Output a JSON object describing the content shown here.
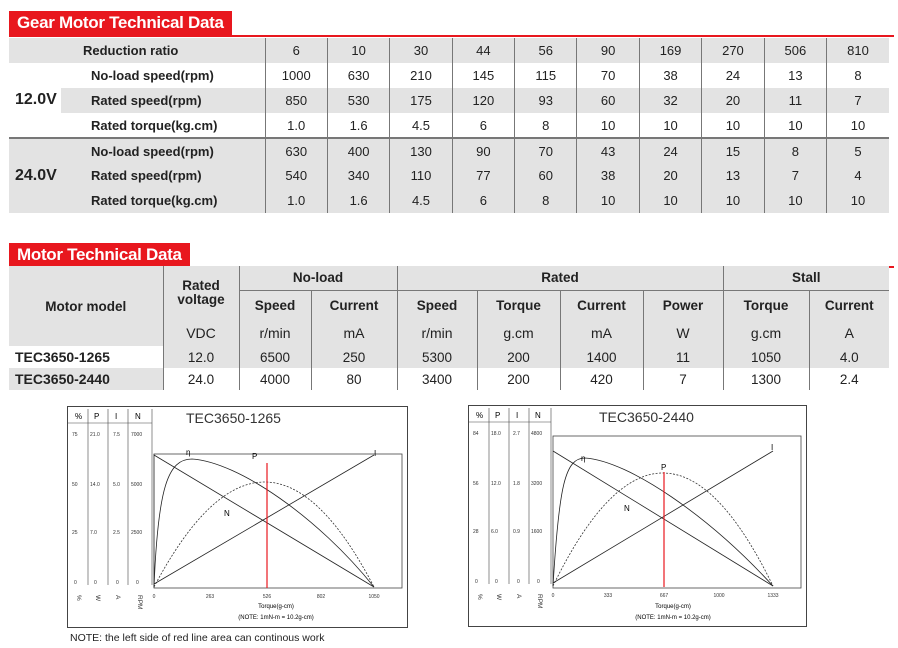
{
  "gear": {
    "title": "Gear Motor Technical Data",
    "ratio_label": "Reduction ratio",
    "ratios": [
      "6",
      "10",
      "30",
      "44",
      "56",
      "90",
      "169",
      "270",
      "506",
      "810"
    ],
    "groups": [
      {
        "voltage": "12.0V",
        "rows": [
          {
            "label": "No-load speed(rpm)",
            "values": [
              "1000",
              "630",
              "210",
              "145",
              "115",
              "70",
              "38",
              "24",
              "13",
              "8"
            ]
          },
          {
            "label": "Rated speed(rpm)",
            "values": [
              "850",
              "530",
              "175",
              "120",
              "93",
              "60",
              "32",
              "20",
              "11",
              "7"
            ]
          },
          {
            "label": "Rated torque(kg.cm)",
            "values": [
              "1.0",
              "1.6",
              "4.5",
              "6",
              "8",
              "10",
              "10",
              "10",
              "10",
              "10"
            ]
          }
        ]
      },
      {
        "voltage": "24.0V",
        "rows": [
          {
            "label": "No-load speed(rpm)",
            "values": [
              "630",
              "400",
              "130",
              "90",
              "70",
              "43",
              "24",
              "15",
              "8",
              "5"
            ]
          },
          {
            "label": "Rated speed(rpm)",
            "values": [
              "540",
              "340",
              "110",
              "77",
              "60",
              "38",
              "20",
              "13",
              "7",
              "4"
            ]
          },
          {
            "label": "Rated torque(kg.cm)",
            "values": [
              "1.0",
              "1.6",
              "4.5",
              "6",
              "8",
              "10",
              "10",
              "10",
              "10",
              "10"
            ]
          }
        ]
      }
    ]
  },
  "motor": {
    "title": "Motor Technical Data",
    "model_header": "Motor model",
    "rated_voltage_header": "Rated voltage",
    "noload_header": "No-load",
    "rated_header": "Rated",
    "stall_header": "Stall",
    "sub_headers": [
      "Speed",
      "Current",
      "Speed",
      "Torque",
      "Current",
      "Power",
      "Torque",
      "Current"
    ],
    "units": [
      "VDC",
      "r/min",
      "mA",
      "r/min",
      "g.cm",
      "mA",
      "W",
      "g.cm",
      "A"
    ],
    "rows": [
      {
        "model": "TEC3650-1265",
        "values": [
          "12.0",
          "6500",
          "250",
          "5300",
          "200",
          "1400",
          "11",
          "1050",
          "4.0"
        ]
      },
      {
        "model": "TEC3650-2440",
        "values": [
          "24.0",
          "4000",
          "80",
          "3400",
          "200",
          "420",
          "7",
          "1300",
          "2.4"
        ]
      }
    ]
  },
  "charts": [
    {
      "title": "TEC3650-1265",
      "left_cols": [
        "%",
        "P",
        "I",
        "N"
      ],
      "left_bottom": [
        "%",
        "W",
        "A",
        "RPM"
      ],
      "left_values": [
        [
          "75",
          "21.0",
          "7.5",
          "7000"
        ],
        [
          "50",
          "14.0",
          "5.0",
          "5000"
        ],
        [
          "25",
          "7.0",
          "2.5",
          "2500"
        ],
        [
          "0",
          "0",
          "0",
          "0"
        ]
      ],
      "x_ticks": [
        "0",
        "263",
        "526",
        "802",
        "1050"
      ],
      "xlabel": "Torque(g-cm)",
      "note": "(NOTE: 1mN-m = 10.2g-cm)",
      "curve_labels": {
        "eta": "η",
        "p": "P",
        "n": "N",
        "i": "I"
      }
    },
    {
      "title": "TEC3650-2440",
      "left_cols": [
        "%",
        "P",
        "I",
        "N"
      ],
      "left_bottom": [
        "%",
        "W",
        "A",
        "RPM"
      ],
      "left_values": [
        [
          "84",
          "18.0",
          "2.7",
          "4800"
        ],
        [
          "56",
          "12.0",
          "1.8",
          "3200"
        ],
        [
          "28",
          "6.0",
          "0.9",
          "1600"
        ],
        [
          "0",
          "0",
          "0",
          "0"
        ]
      ],
      "x_ticks": [
        "0",
        "333",
        "667",
        "1000",
        "1333"
      ],
      "xlabel": "Torque(g-cm)",
      "note": "(NOTE: 1mN-m = 10.2g-cm)",
      "curve_labels": {
        "eta": "η",
        "p": "P",
        "n": "N",
        "i": "I"
      }
    }
  ],
  "footer_note": "NOTE: the left side of red line area can continous work",
  "colors": {
    "accent": "#e8171e",
    "shade": "#e3e3e3"
  }
}
